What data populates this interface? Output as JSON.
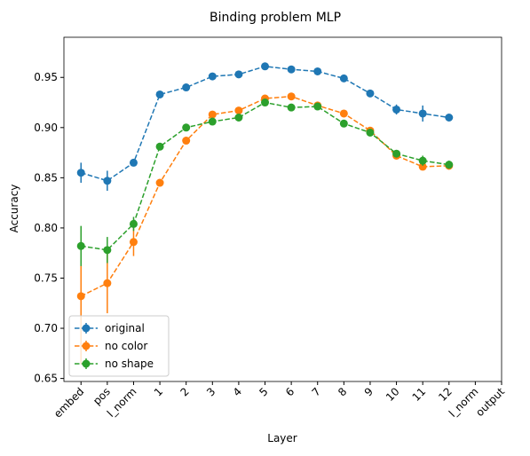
{
  "chart_data": {
    "type": "line",
    "title": "Binding problem MLP",
    "xlabel": "Layer",
    "ylabel": "Accuracy",
    "categories": [
      "embed",
      "pos",
      "l_norm",
      "1",
      "2",
      "3",
      "4",
      "5",
      "6",
      "7",
      "8",
      "9",
      "10",
      "11",
      "12",
      "l_norm",
      "output"
    ],
    "series": [
      {
        "name": "original",
        "color": "#1f77b4",
        "values": [
          0.855,
          0.847,
          0.865,
          0.933,
          0.94,
          0.951,
          0.953,
          0.961,
          0.958,
          0.956,
          0.949,
          0.934,
          0.918,
          0.914,
          0.91,
          null,
          null
        ],
        "errors": [
          0.01,
          0.01,
          0.003,
          0.002,
          0.002,
          0.002,
          0.002,
          0.002,
          0.002,
          0.002,
          0.002,
          0.002,
          0.005,
          0.008,
          0.002,
          null,
          null
        ]
      },
      {
        "name": "no color",
        "color": "#ff7f0e",
        "values": [
          0.732,
          0.745,
          0.786,
          0.845,
          0.887,
          0.913,
          0.917,
          0.929,
          0.931,
          0.922,
          0.914,
          0.897,
          0.872,
          0.861,
          0.862,
          null,
          null
        ],
        "errors": [
          0.068,
          0.03,
          0.014,
          0.003,
          0.003,
          0.003,
          0.003,
          0.003,
          0.003,
          0.003,
          0.003,
          0.003,
          0.003,
          0.003,
          0.004,
          null,
          null
        ]
      },
      {
        "name": "no shape",
        "color": "#2ca02c",
        "values": [
          0.782,
          0.778,
          0.804,
          0.881,
          0.9,
          0.906,
          0.91,
          0.925,
          0.92,
          0.921,
          0.904,
          0.895,
          0.874,
          0.867,
          0.863,
          null,
          null
        ],
        "errors": [
          0.02,
          0.013,
          0.007,
          0.003,
          0.003,
          0.003,
          0.003,
          0.003,
          0.003,
          0.003,
          0.003,
          0.003,
          0.003,
          0.005,
          0.004,
          null,
          null
        ]
      }
    ],
    "ylim": [
      0.647,
      0.99
    ],
    "yticks": [
      0.65,
      {
        "value": 0.7,
        "label": "0.70"
      },
      0.75,
      {
        "value": 0.8,
        "label": "0.80"
      },
      0.85,
      {
        "value": 0.9,
        "label": "0.90"
      },
      0.95
    ],
    "legend": "lower left"
  }
}
